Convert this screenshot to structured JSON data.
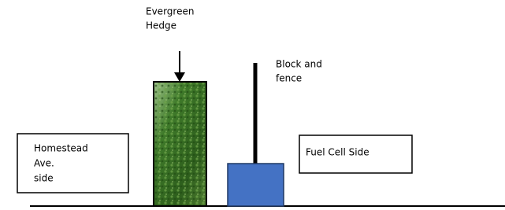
{
  "labels": {
    "hedge": [
      "Evergreen",
      "Hedge"
    ],
    "block": [
      "Block and",
      "fence"
    ],
    "homestead": [
      "Homestead",
      "Ave.",
      "side"
    ],
    "fuel_cell": [
      "Fuel Cell Side"
    ]
  }
}
